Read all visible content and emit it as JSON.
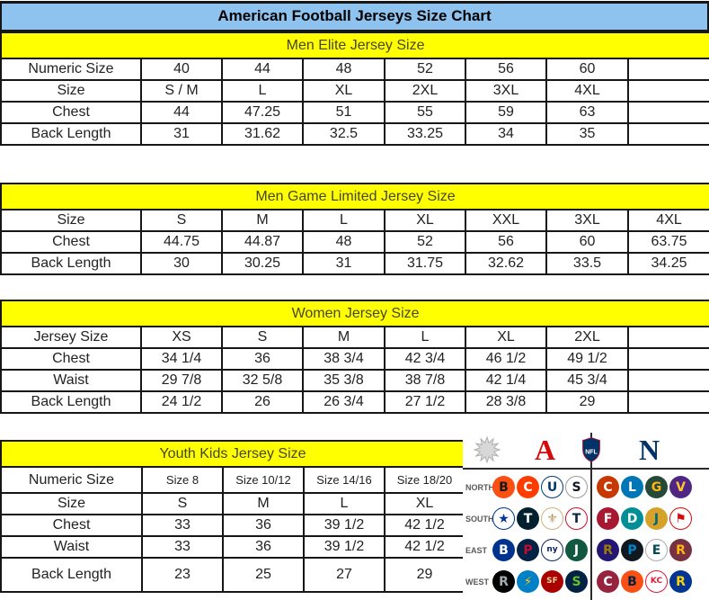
{
  "page": {
    "title": "American Football Jerseys Size Chart"
  },
  "tables": [
    {
      "id": "men-elite",
      "header": "Men Elite Jersey Size",
      "rows": [
        [
          "Numeric Size",
          "40",
          "44",
          "48",
          "52",
          "56",
          "60",
          ""
        ],
        [
          "Size",
          "S / M",
          "L",
          "XL",
          "2XL",
          "3XL",
          "4XL",
          ""
        ],
        [
          "Chest",
          "44",
          "47.25",
          "51",
          "55",
          "59",
          "63",
          ""
        ],
        [
          "Back Length",
          "31",
          "31.62",
          "32.5",
          "33.25",
          "34",
          "35",
          ""
        ]
      ]
    },
    {
      "id": "men-game-limited",
      "header": "Men Game Limited Jersey Size",
      "rows": [
        [
          "Size",
          "S",
          "M",
          "L",
          "XL",
          "XXL",
          "3XL",
          "4XL"
        ],
        [
          "Chest",
          "44.75",
          "44.87",
          "48",
          "52",
          "56",
          "60",
          "63.75"
        ],
        [
          "Back Length",
          "30",
          "30.25",
          "31",
          "31.75",
          "32.62",
          "33.5",
          "34.25"
        ]
      ]
    },
    {
      "id": "women",
      "header": "Women Jersey Size",
      "rows": [
        [
          "Jersey Size",
          "XS",
          "S",
          "M",
          "L",
          "XL",
          "2XL",
          ""
        ],
        [
          "Chest",
          "34 1/4",
          "36",
          "38 3/4",
          "42 3/4",
          "46 1/2",
          "49 1/2",
          ""
        ],
        [
          "Waist",
          "29 7/8",
          "32 5/8",
          "35 3/8",
          "38 7/8",
          "42 1/4",
          "45 3/4",
          ""
        ],
        [
          "Back Length",
          "24 1/2",
          "26",
          "26 3/4",
          "27 1/2",
          "28 3/8",
          "29",
          ""
        ]
      ]
    },
    {
      "id": "youth-kids",
      "header": "Youth Kids Jersey Size",
      "rows": [
        [
          "Numeric Size",
          "Size 8",
          "Size 10/12",
          "Size 14/16",
          "Size 18/20"
        ],
        [
          "Size",
          "S",
          "M",
          "L",
          "XL"
        ],
        [
          "Chest",
          "33",
          "36",
          "39 1/2",
          "42 1/2"
        ],
        [
          "Waist",
          "33",
          "36",
          "39 1/2",
          "42 1/2"
        ],
        [
          "Back Length",
          "23",
          "25",
          "27",
          "29"
        ]
      ]
    }
  ],
  "colors": {
    "title_bar_bg": "#8fc3ef",
    "band_bg": "#ffff00",
    "band_text": "#45452c",
    "table_border": "#161616",
    "afc_red": "#d50a0a",
    "nfc_blue": "#013369"
  },
  "nfl_panel": {
    "afc_letter": "A",
    "nfc_letter": "N",
    "shield_text": "NFL",
    "divisions": [
      {
        "label": "NORTH",
        "afc": [
          {
            "team": "bengals",
            "glyph": "B",
            "bg": "#fb4f14",
            "fg": "#1a1a1a"
          },
          {
            "team": "browns",
            "glyph": "C",
            "bg": "#ff3c00",
            "fg": "#ffffff"
          },
          {
            "team": "colts",
            "glyph": "U",
            "bg": "#ffffff",
            "fg": "#003a70",
            "border": "#003a70"
          },
          {
            "team": "steelers",
            "glyph": "S",
            "bg": "#ffffff",
            "fg": "#101820",
            "border": "#9a9a9a"
          }
        ],
        "nfc": [
          {
            "team": "bears",
            "glyph": "C",
            "bg": "#c83803",
            "fg": "#ffffff"
          },
          {
            "team": "lions",
            "glyph": "L",
            "bg": "#0076b6",
            "fg": "#ffffff"
          },
          {
            "team": "packers",
            "glyph": "G",
            "bg": "#26493a",
            "fg": "#ffb612"
          },
          {
            "team": "vikings",
            "glyph": "V",
            "bg": "#4f2683",
            "fg": "#ffc62f"
          }
        ]
      },
      {
        "label": "SOUTH",
        "afc": [
          {
            "team": "cowboys-star",
            "glyph": "★",
            "bg": "#ffffff",
            "fg": "#003594",
            "border": "#003594"
          },
          {
            "team": "texans",
            "glyph": "T",
            "bg": "#03202f",
            "fg": "#ffffff"
          },
          {
            "team": "saints",
            "glyph": "⚜",
            "bg": "#ffffff",
            "fg": "#b5985a",
            "border": "#cbb37a"
          },
          {
            "team": "titans",
            "glyph": "T",
            "bg": "#ffffff",
            "fg": "#0c2340",
            "border": "#c8102e"
          }
        ],
        "nfc": [
          {
            "team": "falcons",
            "glyph": "F",
            "bg": "#a71930",
            "fg": "#ffffff"
          },
          {
            "team": "dolphins",
            "glyph": "D",
            "bg": "#008e97",
            "fg": "#ffffff"
          },
          {
            "team": "jaguars",
            "glyph": "J",
            "bg": "#d7a22a",
            "fg": "#006778"
          },
          {
            "team": "buccaneers",
            "glyph": "⚑",
            "bg": "#ffffff",
            "fg": "#d50a0a",
            "border": "#d50a0a"
          }
        ]
      },
      {
        "label": "EAST",
        "afc": [
          {
            "team": "bills",
            "glyph": "B",
            "bg": "#00338d",
            "fg": "#ffffff"
          },
          {
            "team": "patriots",
            "glyph": "P",
            "bg": "#002244",
            "fg": "#c60c30"
          },
          {
            "team": "giants",
            "glyph": "ny",
            "bg": "#ffffff",
            "fg": "#0b2265",
            "border": "#0b2265"
          },
          {
            "team": "jets",
            "glyph": "J",
            "bg": "#125740",
            "fg": "#ffffff"
          }
        ],
        "nfc": [
          {
            "team": "ravens",
            "glyph": "R",
            "bg": "#241773",
            "fg": "#9e7c0c"
          },
          {
            "team": "panthers",
            "glyph": "P",
            "bg": "#101820",
            "fg": "#0085ca"
          },
          {
            "team": "eagles",
            "glyph": "E",
            "bg": "#ffffff",
            "fg": "#004c54",
            "border": "#a5acaf"
          },
          {
            "team": "redskins",
            "glyph": "R",
            "bg": "#773141",
            "fg": "#ffb612"
          }
        ]
      },
      {
        "label": "WEST",
        "afc": [
          {
            "team": "raiders",
            "glyph": "R",
            "bg": "#000000",
            "fg": "#a5acaf"
          },
          {
            "team": "chargers",
            "glyph": "⚡",
            "bg": "#0080c6",
            "fg": "#ffc20e"
          },
          {
            "team": "49ers",
            "glyph": "SF",
            "bg": "#aa0000",
            "fg": "#e6d3a3"
          },
          {
            "team": "seahawks",
            "glyph": "S",
            "bg": "#002244",
            "fg": "#69be28"
          }
        ],
        "nfc": [
          {
            "team": "cardinals",
            "glyph": "C",
            "bg": "#97233f",
            "fg": "#ffffff"
          },
          {
            "team": "broncos",
            "glyph": "B",
            "bg": "#fb4f14",
            "fg": "#002244"
          },
          {
            "team": "chiefs",
            "glyph": "KC",
            "bg": "#ffffff",
            "fg": "#e31837",
            "border": "#e31837"
          },
          {
            "team": "rams",
            "glyph": "R",
            "bg": "#003594",
            "fg": "#ffd100"
          }
        ]
      }
    ]
  }
}
